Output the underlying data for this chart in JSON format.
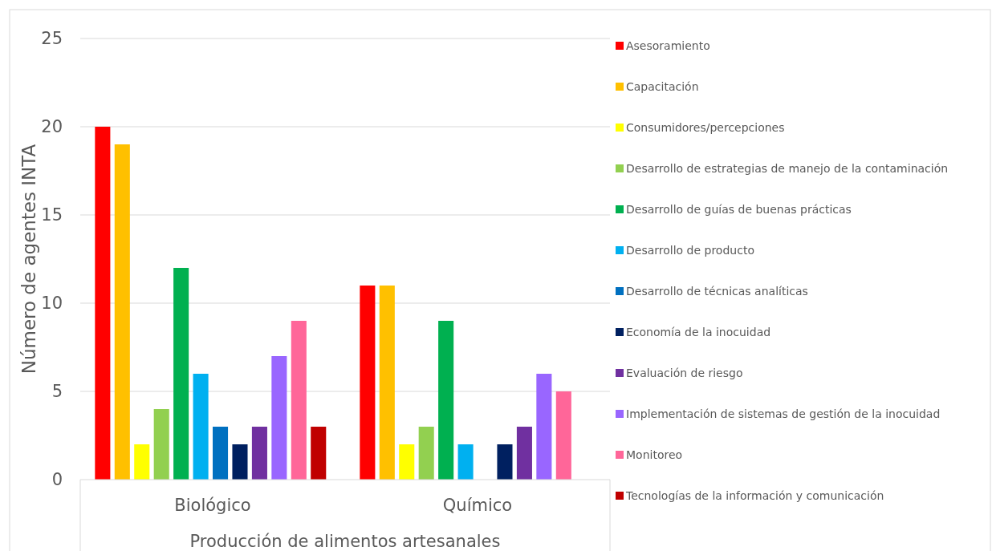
{
  "chart_data": {
    "type": "bar",
    "categories": [
      "Biológico",
      "Químico"
    ],
    "xlabel": "Producción de alimentos artesanales",
    "ylabel": "Número de agentes INTA",
    "ylim": [
      0,
      25
    ],
    "yticks": [
      0,
      5,
      10,
      15,
      20,
      25
    ],
    "grid": "y",
    "legend": "right",
    "series": [
      {
        "name": "Asesoramiento",
        "color": "#ff0000",
        "values": [
          20,
          11
        ]
      },
      {
        "name": "Capacitación",
        "color": "#ffc000",
        "values": [
          19,
          11
        ]
      },
      {
        "name": "Consumidores/percepciones",
        "color": "#ffff00",
        "values": [
          2,
          2
        ]
      },
      {
        "name": "Desarrollo de estrategias de manejo de la contaminación",
        "color": "#92d050",
        "values": [
          4,
          3
        ]
      },
      {
        "name": "Desarrollo de guías de buenas prácticas",
        "color": "#00b050",
        "values": [
          12,
          9
        ]
      },
      {
        "name": "Desarrollo de producto",
        "color": "#00b0f0",
        "values": [
          6,
          2
        ]
      },
      {
        "name": "Desarrollo de técnicas analíticas",
        "color": "#0070c0",
        "values": [
          3,
          null
        ]
      },
      {
        "name": "Economía de la inocuidad",
        "color": "#002060",
        "values": [
          2,
          2
        ]
      },
      {
        "name": "Evaluación de riesgo",
        "color": "#7030a0",
        "values": [
          3,
          3
        ]
      },
      {
        "name": "Implementación de sistemas de gestión de la inocuidad",
        "color": "#9966ff",
        "values": [
          7,
          6
        ]
      },
      {
        "name": "Monitoreo",
        "color": "#ff6699",
        "values": [
          9,
          5
        ]
      },
      {
        "name": "Tecnologías de la información y comunicación",
        "color": "#c00000",
        "values": [
          3,
          null
        ]
      }
    ]
  }
}
